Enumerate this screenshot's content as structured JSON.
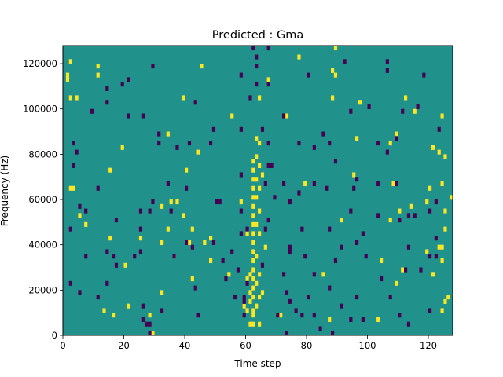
{
  "chart_data": {
    "type": "heatmap",
    "title": "Predicted : Gma",
    "xlabel": "Time step",
    "ylabel": "Frequency (Hz)",
    "xlim": [
      0,
      128
    ],
    "ylim": [
      0,
      128000
    ],
    "xticks": [
      "0",
      "20",
      "40",
      "60",
      "80",
      "100",
      "120"
    ],
    "yticks": [
      "0",
      "20000",
      "40000",
      "60000",
      "80000",
      "100000",
      "120000"
    ],
    "grid": false,
    "legend": "none",
    "colors": {
      "background": "#21918c",
      "high": "#fde725",
      "low": "#440154"
    },
    "cell_values": [
      "low (0)",
      "background (0.5)",
      "high (1)"
    ],
    "time_bins": 128,
    "freq_bins": 64,
    "freq_bin_width_hz": 2000,
    "high_cells": [
      [
        1,
        114
      ],
      [
        1,
        112
      ],
      [
        2,
        120
      ],
      [
        2,
        104
      ],
      [
        2,
        64
      ],
      [
        3,
        64
      ],
      [
        4,
        104
      ],
      [
        5,
        52
      ],
      [
        7,
        48
      ],
      [
        11,
        114
      ],
      [
        11,
        118
      ],
      [
        13,
        10
      ],
      [
        15,
        72
      ],
      [
        15,
        42
      ],
      [
        16,
        8
      ],
      [
        19,
        82
      ],
      [
        20,
        30
      ],
      [
        21,
        12
      ],
      [
        25,
        42
      ],
      [
        28,
        8
      ],
      [
        29,
        0
      ],
      [
        32,
        56
      ],
      [
        32,
        40
      ],
      [
        32,
        18
      ],
      [
        34,
        88
      ],
      [
        34,
        46
      ],
      [
        35,
        58
      ],
      [
        36,
        34
      ],
      [
        37,
        58
      ],
      [
        39,
        52
      ],
      [
        39,
        104
      ],
      [
        40,
        72
      ],
      [
        40,
        40
      ],
      [
        41,
        40
      ],
      [
        42,
        24
      ],
      [
        42,
        46
      ],
      [
        44,
        80
      ],
      [
        45,
        118
      ],
      [
        46,
        40
      ],
      [
        48,
        32
      ],
      [
        48,
        42
      ],
      [
        54,
        26
      ],
      [
        55,
        96
      ],
      [
        58,
        58
      ],
      [
        59,
        12
      ],
      [
        60,
        24
      ],
      [
        60,
        10
      ],
      [
        60,
        44
      ],
      [
        61,
        14
      ],
      [
        61,
        4
      ],
      [
        61,
        18
      ],
      [
        61,
        26
      ],
      [
        62,
        10
      ],
      [
        62,
        64
      ],
      [
        62,
        68
      ],
      [
        62,
        72
      ],
      [
        62,
        76
      ],
      [
        62,
        60
      ],
      [
        62,
        56
      ],
      [
        62,
        52
      ],
      [
        62,
        48
      ],
      [
        62,
        44
      ],
      [
        62,
        40
      ],
      [
        62,
        36
      ],
      [
        62,
        32
      ],
      [
        62,
        28
      ],
      [
        62,
        24
      ],
      [
        62,
        20
      ],
      [
        62,
        16
      ],
      [
        62,
        8
      ],
      [
        62,
        4
      ],
      [
        63,
        12
      ],
      [
        63,
        22
      ],
      [
        63,
        34
      ],
      [
        63,
        48
      ],
      [
        63,
        60
      ],
      [
        63,
        68
      ],
      [
        63,
        78
      ],
      [
        63,
        86
      ],
      [
        64,
        4
      ],
      [
        64,
        16
      ],
      [
        64,
        26
      ],
      [
        64,
        44
      ],
      [
        64,
        54
      ],
      [
        64,
        64
      ],
      [
        64,
        74
      ],
      [
        64,
        84
      ],
      [
        64,
        104
      ],
      [
        65,
        18
      ],
      [
        65,
        70
      ],
      [
        66,
        38
      ],
      [
        67,
        112
      ],
      [
        71,
        8
      ],
      [
        73,
        96
      ],
      [
        77,
        122
      ],
      [
        79,
        66
      ],
      [
        85,
        26
      ],
      [
        87,
        6
      ],
      [
        88,
        104
      ],
      [
        88,
        116
      ],
      [
        89,
        114
      ],
      [
        89,
        126
      ],
      [
        91,
        50
      ],
      [
        95,
        70
      ],
      [
        96,
        86
      ],
      [
        97,
        102
      ],
      [
        103,
        6
      ],
      [
        104,
        32
      ],
      [
        107,
        50
      ],
      [
        107,
        84
      ],
      [
        108,
        66
      ],
      [
        109,
        22
      ],
      [
        109,
        88
      ],
      [
        110,
        54
      ],
      [
        111,
        28
      ],
      [
        112,
        104
      ],
      [
        114,
        56
      ],
      [
        115,
        98
      ],
      [
        119,
        58
      ],
      [
        119,
        36
      ],
      [
        120,
        64
      ],
      [
        121,
        82
      ],
      [
        121,
        26
      ],
      [
        123,
        38
      ],
      [
        123,
        80
      ],
      [
        124,
        66
      ],
      [
        124,
        10
      ],
      [
        124,
        38
      ],
      [
        124,
        32
      ],
      [
        124,
        96
      ],
      [
        125,
        46
      ],
      [
        125,
        54
      ],
      [
        125,
        14
      ],
      [
        126,
        16
      ],
      [
        127,
        60
      ],
      [
        125,
        78
      ]
    ],
    "low_cells": [
      [
        2,
        46
      ],
      [
        2,
        22
      ],
      [
        3,
        74
      ],
      [
        3,
        84
      ],
      [
        4,
        80
      ],
      [
        5,
        18
      ],
      [
        5,
        56
      ],
      [
        7,
        54
      ],
      [
        7,
        34
      ],
      [
        9,
        98
      ],
      [
        11,
        64
      ],
      [
        11,
        16
      ],
      [
        14,
        22
      ],
      [
        14,
        108
      ],
      [
        14,
        36
      ],
      [
        14,
        102
      ],
      [
        16,
        34
      ],
      [
        17,
        30
      ],
      [
        17,
        50
      ],
      [
        19,
        110
      ],
      [
        21,
        96
      ],
      [
        21,
        112
      ],
      [
        23,
        34
      ],
      [
        25,
        54
      ],
      [
        25,
        46
      ],
      [
        25,
        36
      ],
      [
        26,
        6
      ],
      [
        26,
        12
      ],
      [
        26,
        96
      ],
      [
        27,
        4
      ],
      [
        28,
        0
      ],
      [
        28,
        4
      ],
      [
        28,
        54
      ],
      [
        29,
        58
      ],
      [
        29,
        118
      ],
      [
        31,
        88
      ],
      [
        31,
        84
      ],
      [
        32,
        10
      ],
      [
        34,
        66
      ],
      [
        35,
        54
      ],
      [
        36,
        34
      ],
      [
        37,
        82
      ],
      [
        40,
        64
      ],
      [
        40,
        40
      ],
      [
        41,
        84
      ],
      [
        42,
        38
      ],
      [
        43,
        102
      ],
      [
        43,
        20
      ],
      [
        44,
        8
      ],
      [
        48,
        84
      ],
      [
        49,
        40
      ],
      [
        49,
        90
      ],
      [
        50,
        58
      ],
      [
        51,
        58
      ],
      [
        52,
        32
      ],
      [
        53,
        24
      ],
      [
        55,
        36
      ],
      [
        56,
        16
      ],
      [
        57,
        28
      ],
      [
        58,
        44
      ],
      [
        58,
        54
      ],
      [
        58,
        70
      ],
      [
        58,
        90
      ],
      [
        58,
        114
      ],
      [
        59,
        8
      ],
      [
        59,
        16
      ],
      [
        59,
        14
      ],
      [
        60,
        22
      ],
      [
        60,
        46
      ],
      [
        61,
        104
      ],
      [
        62,
        126
      ],
      [
        63,
        110
      ],
      [
        63,
        118
      ],
      [
        63,
        122
      ],
      [
        65,
        30
      ],
      [
        65,
        90
      ],
      [
        66,
        46
      ],
      [
        66,
        66
      ],
      [
        67,
        50
      ],
      [
        67,
        84
      ],
      [
        67,
        74
      ],
      [
        67,
        110
      ],
      [
        67,
        126
      ],
      [
        68,
        74
      ],
      [
        69,
        60
      ],
      [
        70,
        8
      ],
      [
        72,
        26
      ],
      [
        72,
        66
      ],
      [
        72,
        96
      ],
      [
        73,
        0
      ],
      [
        73,
        18
      ],
      [
        74,
        36
      ],
      [
        74,
        38
      ],
      [
        74,
        14
      ],
      [
        74,
        58
      ],
      [
        76,
        10
      ],
      [
        77,
        62
      ],
      [
        77,
        84
      ],
      [
        78,
        8
      ],
      [
        78,
        46
      ],
      [
        79,
        34
      ],
      [
        80,
        16
      ],
      [
        80,
        114
      ],
      [
        82,
        26
      ],
      [
        82,
        66
      ],
      [
        82,
        82
      ],
      [
        82,
        8
      ],
      [
        84,
        2
      ],
      [
        85,
        88
      ],
      [
        86,
        64
      ],
      [
        87,
        20
      ],
      [
        87,
        46
      ],
      [
        87,
        84
      ],
      [
        88,
        0
      ],
      [
        89,
        76
      ],
      [
        89,
        32
      ],
      [
        91,
        38
      ],
      [
        91,
        12
      ],
      [
        92,
        120
      ],
      [
        94,
        6
      ],
      [
        94,
        54
      ],
      [
        94,
        98
      ],
      [
        95,
        64
      ],
      [
        96,
        16
      ],
      [
        96,
        40
      ],
      [
        96,
        68
      ],
      [
        98,
        6
      ],
      [
        98,
        44
      ],
      [
        99,
        34
      ],
      [
        100,
        100
      ],
      [
        103,
        84
      ],
      [
        103,
        66
      ],
      [
        103,
        52
      ],
      [
        104,
        24
      ],
      [
        106,
        80
      ],
      [
        106,
        116
      ],
      [
        106,
        120
      ],
      [
        107,
        16
      ],
      [
        109,
        86
      ],
      [
        109,
        66
      ],
      [
        110,
        50
      ],
      [
        110,
        8
      ],
      [
        111,
        98
      ],
      [
        112,
        28
      ],
      [
        113,
        4
      ],
      [
        113,
        52
      ],
      [
        113,
        38
      ],
      [
        115,
        52
      ],
      [
        116,
        100
      ],
      [
        117,
        28
      ],
      [
        118,
        114
      ],
      [
        120,
        10
      ],
      [
        120,
        34
      ],
      [
        120,
        54
      ],
      [
        122,
        34
      ],
      [
        122,
        42
      ],
      [
        122,
        58
      ],
      [
        123,
        90
      ]
    ]
  }
}
